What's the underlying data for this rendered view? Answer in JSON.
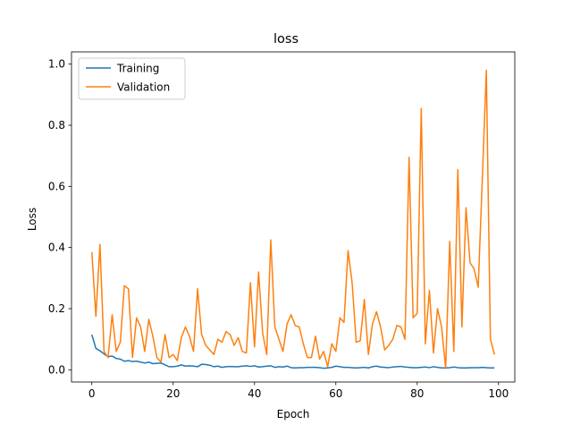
{
  "chart_data": {
    "type": "line",
    "title": "loss",
    "xlabel": "Epoch",
    "ylabel": "Loss",
    "xlim": [
      -5,
      104
    ],
    "ylim": [
      -0.04,
      1.04
    ],
    "xticks": [
      0,
      20,
      40,
      60,
      80,
      100
    ],
    "yticks": [
      0.0,
      0.2,
      0.4,
      0.6,
      0.8,
      1.0
    ],
    "xtick_labels": [
      "0",
      "20",
      "40",
      "60",
      "80",
      "100"
    ],
    "ytick_labels": [
      "0.0",
      "0.2",
      "0.4",
      "0.6",
      "0.8",
      "1.0"
    ],
    "grid": false,
    "legend_position": "top-left",
    "series": [
      {
        "name": "Training",
        "color": "#1f77b4",
        "x": [
          0,
          1,
          2,
          3,
          4,
          5,
          6,
          7,
          8,
          9,
          10,
          11,
          12,
          13,
          14,
          15,
          16,
          17,
          18,
          19,
          20,
          21,
          22,
          23,
          24,
          25,
          26,
          27,
          28,
          29,
          30,
          31,
          32,
          33,
          34,
          35,
          36,
          37,
          38,
          39,
          40,
          41,
          42,
          43,
          44,
          45,
          46,
          47,
          48,
          49,
          50,
          51,
          52,
          53,
          54,
          55,
          56,
          57,
          58,
          59,
          60,
          61,
          62,
          63,
          64,
          65,
          66,
          67,
          68,
          69,
          70,
          71,
          72,
          73,
          74,
          75,
          76,
          77,
          78,
          79,
          80,
          81,
          82,
          83,
          84,
          85,
          86,
          87,
          88,
          89,
          90,
          91,
          92,
          93,
          94,
          95,
          96,
          97,
          98,
          99
        ],
        "values": [
          0.115,
          0.07,
          0.062,
          0.052,
          0.043,
          0.045,
          0.037,
          0.035,
          0.028,
          0.03,
          0.027,
          0.028,
          0.025,
          0.022,
          0.025,
          0.02,
          0.021,
          0.022,
          0.016,
          0.01,
          0.01,
          0.012,
          0.016,
          0.012,
          0.013,
          0.012,
          0.01,
          0.018,
          0.017,
          0.015,
          0.01,
          0.012,
          0.008,
          0.01,
          0.011,
          0.01,
          0.01,
          0.012,
          0.013,
          0.011,
          0.013,
          0.009,
          0.01,
          0.012,
          0.013,
          0.008,
          0.01,
          0.009,
          0.012,
          0.007,
          0.006,
          0.007,
          0.007,
          0.008,
          0.008,
          0.008,
          0.007,
          0.005,
          0.006,
          0.008,
          0.012,
          0.01,
          0.008,
          0.008,
          0.007,
          0.006,
          0.007,
          0.008,
          0.006,
          0.01,
          0.012,
          0.009,
          0.008,
          0.007,
          0.009,
          0.01,
          0.011,
          0.009,
          0.008,
          0.007,
          0.007,
          0.008,
          0.009,
          0.007,
          0.01,
          0.008,
          0.006,
          0.006,
          0.007,
          0.009,
          0.007,
          0.006,
          0.006,
          0.007,
          0.007,
          0.007,
          0.008,
          0.007,
          0.006,
          0.006
        ]
      },
      {
        "name": "Validation",
        "color": "#ff7f0e",
        "x": [
          0,
          1,
          2,
          3,
          4,
          5,
          6,
          7,
          8,
          9,
          10,
          11,
          12,
          13,
          14,
          15,
          16,
          17,
          18,
          19,
          20,
          21,
          22,
          23,
          24,
          25,
          26,
          27,
          28,
          29,
          30,
          31,
          32,
          33,
          34,
          35,
          36,
          37,
          38,
          39,
          40,
          41,
          42,
          43,
          44,
          45,
          46,
          47,
          48,
          49,
          50,
          51,
          52,
          53,
          54,
          55,
          56,
          57,
          58,
          59,
          60,
          61,
          62,
          63,
          64,
          65,
          66,
          67,
          68,
          69,
          70,
          71,
          72,
          73,
          74,
          75,
          76,
          77,
          78,
          79,
          80,
          81,
          82,
          83,
          84,
          85,
          86,
          87,
          88,
          89,
          90,
          91,
          92,
          93,
          94,
          95,
          96,
          97,
          98,
          99
        ],
        "values": [
          0.385,
          0.175,
          0.41,
          0.06,
          0.04,
          0.18,
          0.06,
          0.09,
          0.275,
          0.265,
          0.04,
          0.17,
          0.14,
          0.06,
          0.165,
          0.11,
          0.04,
          0.025,
          0.115,
          0.04,
          0.05,
          0.03,
          0.105,
          0.14,
          0.11,
          0.06,
          0.265,
          0.115,
          0.08,
          0.065,
          0.05,
          0.1,
          0.09,
          0.125,
          0.115,
          0.08,
          0.105,
          0.06,
          0.055,
          0.285,
          0.075,
          0.32,
          0.12,
          0.05,
          0.425,
          0.14,
          0.1,
          0.06,
          0.15,
          0.18,
          0.145,
          0.14,
          0.085,
          0.04,
          0.04,
          0.11,
          0.035,
          0.06,
          0.01,
          0.085,
          0.06,
          0.17,
          0.155,
          0.39,
          0.285,
          0.09,
          0.095,
          0.23,
          0.05,
          0.15,
          0.19,
          0.14,
          0.065,
          0.08,
          0.1,
          0.145,
          0.14,
          0.1,
          0.695,
          0.17,
          0.185,
          0.855,
          0.085,
          0.26,
          0.055,
          0.2,
          0.14,
          0.005,
          0.42,
          0.06,
          0.655,
          0.14,
          0.53,
          0.35,
          0.33,
          0.27,
          0.62,
          0.98,
          0.1,
          0.05
        ]
      }
    ]
  }
}
